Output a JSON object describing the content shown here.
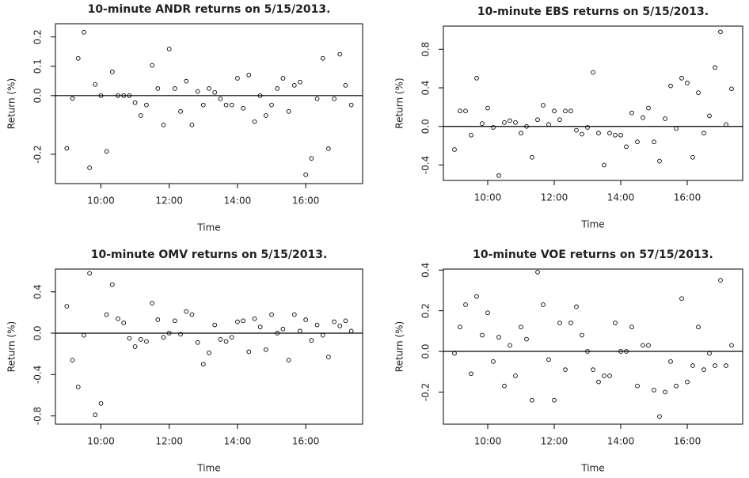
{
  "chart_data": [
    {
      "type": "scatter",
      "title": "10-minute ANDR returns on 5/15/2013.",
      "x_label": "Time",
      "y_label": "Return (%)",
      "x": [
        540,
        550,
        560,
        570,
        580,
        590,
        600,
        610,
        620,
        630,
        640,
        650,
        660,
        670,
        680,
        690,
        700,
        710,
        720,
        730,
        740,
        750,
        760,
        770,
        780,
        790,
        800,
        810,
        820,
        830,
        840,
        850,
        860,
        870,
        880,
        890,
        900,
        910,
        920,
        930,
        940,
        950,
        960,
        970,
        980,
        990,
        1000,
        1010,
        1020,
        1030,
        1040
      ],
      "series": [
        {
          "name": "ANDR",
          "color": "#000000",
          "values": [
            -0.18,
            -0.01,
            0.127,
            0.216,
            -0.246,
            0.038,
            0,
            -0.19,
            0.081,
            0,
            0,
            0,
            -0.024,
            -0.068,
            -0.032,
            0.103,
            0.024,
            -0.1,
            0.159,
            0.024,
            -0.054,
            0.049,
            -0.1,
            0.014,
            -0.032,
            0.024,
            0.011,
            -0.011,
            -0.032,
            -0.032,
            0.059,
            -0.043,
            0.07,
            -0.089,
            0,
            -0.068,
            -0.032,
            0.024,
            0.059,
            -0.054,
            0.035,
            0.046,
            -0.27,
            -0.214,
            -0.011,
            0.127,
            -0.181,
            -0.011,
            0.141,
            0.035,
            -0.032
          ]
        }
      ],
      "xlim": [
        520,
        1060
      ],
      "xticks": [
        {
          "value": 600,
          "label": "10:00"
        },
        {
          "value": 720,
          "label": "12:00"
        },
        {
          "value": 840,
          "label": "14:00"
        },
        {
          "value": 960,
          "label": "16:00"
        }
      ],
      "ylim": [
        -0.3,
        0.245
      ],
      "yticks": [
        -0.2,
        {
          "value": 0,
          "label": "0.0"
        },
        0.1,
        0.2
      ],
      "reference_line": 0
    },
    {
      "type": "scatter",
      "title": "10-minute EBS returns on 5/15/2013.",
      "x_label": "Time",
      "y_label": "Return (%)",
      "x": [
        540,
        550,
        560,
        570,
        580,
        590,
        600,
        610,
        620,
        630,
        640,
        650,
        660,
        670,
        680,
        690,
        700,
        710,
        720,
        730,
        740,
        750,
        760,
        770,
        780,
        790,
        800,
        810,
        820,
        830,
        840,
        850,
        860,
        870,
        880,
        890,
        900,
        910,
        920,
        930,
        940,
        950,
        960,
        970,
        980,
        990,
        1000,
        1010,
        1020,
        1030,
        1040
      ],
      "series": [
        {
          "name": "EBS",
          "color": "#000000",
          "values": [
            -0.24,
            0.16,
            0.16,
            -0.09,
            0.5,
            0.03,
            0.19,
            -0.01,
            -0.51,
            0.04,
            0.06,
            0.04,
            -0.07,
            0,
            -0.32,
            0.07,
            0.22,
            0.02,
            0.16,
            0.07,
            0.16,
            0.16,
            -0.04,
            -0.08,
            -0.01,
            0.56,
            -0.07,
            -0.4,
            -0.07,
            -0.09,
            -0.09,
            -0.21,
            0.14,
            -0.16,
            0.09,
            0.19,
            -0.16,
            -0.36,
            0.08,
            0.42,
            -0.02,
            0.5,
            0.45,
            -0.32,
            0.35,
            -0.07,
            0.11,
            0.61,
            0.98,
            0.02,
            0.39
          ]
        }
      ],
      "xlim": [
        520,
        1060
      ],
      "xticks": [
        {
          "value": 600,
          "label": "10:00"
        },
        {
          "value": 720,
          "label": "12:00"
        },
        {
          "value": 840,
          "label": "14:00"
        },
        {
          "value": 960,
          "label": "16:00"
        }
      ],
      "ylim": [
        -0.56,
        1.04
      ],
      "yticks": [
        -0.4,
        {
          "value": 0,
          "label": "0.0"
        },
        0.4,
        0.8
      ],
      "reference_line": 0
    },
    {
      "type": "scatter",
      "title": "10-minute OMV returns on 5/15/2013.",
      "x_label": "Time",
      "y_label": "Return (%)",
      "x": [
        540,
        550,
        560,
        570,
        580,
        590,
        600,
        610,
        620,
        630,
        640,
        650,
        660,
        670,
        680,
        690,
        700,
        710,
        720,
        730,
        740,
        750,
        760,
        770,
        780,
        790,
        800,
        810,
        820,
        830,
        840,
        850,
        860,
        870,
        880,
        890,
        900,
        910,
        920,
        930,
        940,
        950,
        960,
        970,
        980,
        990,
        1000,
        1010,
        1020,
        1030,
        1040
      ],
      "series": [
        {
          "name": "OMV",
          "color": "#000000",
          "values": [
            0.26,
            -0.26,
            -0.52,
            -0.02,
            0.58,
            -0.79,
            -0.68,
            0.18,
            0.47,
            0.14,
            0.1,
            -0.05,
            -0.13,
            -0.06,
            -0.08,
            0.29,
            0.13,
            -0.04,
            0,
            0.12,
            -0.01,
            0.21,
            0.18,
            -0.09,
            -0.3,
            -0.19,
            0.08,
            -0.06,
            -0.08,
            -0.04,
            0.11,
            0.12,
            -0.18,
            0.14,
            0.06,
            -0.16,
            0.18,
            0,
            0.04,
            -0.26,
            0.18,
            0.02,
            0.13,
            -0.07,
            0.08,
            -0.02,
            -0.23,
            0.11,
            0.07,
            0.12,
            0.02
          ]
        }
      ],
      "xlim": [
        520,
        1060
      ],
      "xticks": [
        {
          "value": 600,
          "label": "10:00"
        },
        {
          "value": 720,
          "label": "12:00"
        },
        {
          "value": 840,
          "label": "14:00"
        },
        {
          "value": 960,
          "label": "16:00"
        }
      ],
      "ylim": [
        -0.88,
        0.62
      ],
      "yticks": [
        -0.8,
        -0.4,
        {
          "value": 0,
          "label": "0.0"
        },
        0.4
      ],
      "reference_line": 0
    },
    {
      "type": "scatter",
      "title": "10-minute VOE returns on 57/15/2013.",
      "x_label": "Time",
      "y_label": "Return (%)",
      "x": [
        540,
        550,
        560,
        570,
        580,
        590,
        600,
        610,
        620,
        630,
        640,
        650,
        660,
        670,
        680,
        690,
        700,
        710,
        720,
        730,
        740,
        750,
        760,
        770,
        780,
        790,
        800,
        810,
        820,
        830,
        840,
        850,
        860,
        870,
        880,
        890,
        900,
        910,
        920,
        930,
        940,
        950,
        960,
        970,
        980,
        990,
        1000,
        1010,
        1020,
        1030,
        1040
      ],
      "series": [
        {
          "name": "VOE",
          "color": "#000000",
          "values": [
            -0.01,
            0.12,
            0.23,
            -0.11,
            0.27,
            0.08,
            0.19,
            -0.05,
            0.07,
            -0.17,
            0.03,
            -0.12,
            0.12,
            0.06,
            -0.24,
            0.39,
            0.23,
            -0.04,
            -0.24,
            0.14,
            -0.09,
            0.14,
            0.22,
            0.08,
            0,
            -0.09,
            -0.15,
            -0.12,
            -0.12,
            0.14,
            0,
            0,
            0.12,
            -0.17,
            0.03,
            0.03,
            -0.19,
            -0.32,
            -0.2,
            -0.05,
            -0.17,
            0.26,
            -0.15,
            -0.07,
            0.12,
            -0.09,
            -0.01,
            -0.07,
            0.35,
            -0.07,
            0.03
          ]
        }
      ],
      "xlim": [
        520,
        1060
      ],
      "xticks": [
        {
          "value": 600,
          "label": "10:00"
        },
        {
          "value": 720,
          "label": "12:00"
        },
        {
          "value": 840,
          "label": "14:00"
        },
        {
          "value": 960,
          "label": "16:00"
        }
      ],
      "ylim": [
        -0.358,
        0.405
      ],
      "yticks": [
        -0.2,
        {
          "value": 0,
          "label": "0.0"
        },
        0.2,
        0.4
      ],
      "reference_line": 0
    }
  ]
}
